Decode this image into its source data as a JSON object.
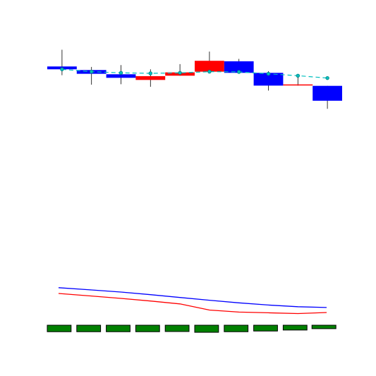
{
  "chart_data": [
    {
      "type": "candlestick",
      "grid": false,
      "ylim": [
        0,
        100
      ],
      "colors": {
        "up": "#ff0000",
        "down": "#0000ff",
        "wick": "#000000",
        "ma_line": "#00bfbf",
        "ma_marker": "#008080"
      },
      "candles": [
        {
          "open": 86.5,
          "close": 85.3,
          "high": 93.6,
          "low": 82.8
        },
        {
          "open": 85.0,
          "close": 83.4,
          "high": 86.3,
          "low": 78.8
        },
        {
          "open": 83.2,
          "close": 81.7,
          "high": 87.1,
          "low": 79.0
        },
        {
          "open": 80.8,
          "close": 82.4,
          "high": 85.3,
          "low": 77.9
        },
        {
          "open": 82.6,
          "close": 84.0,
          "high": 87.5,
          "low": 82.6
        },
        {
          "open": 84.3,
          "close": 88.9,
          "high": 92.8,
          "low": 84.3
        },
        {
          "open": 88.7,
          "close": 83.8,
          "high": 89.7,
          "low": 83.5
        },
        {
          "open": 83.8,
          "close": 78.4,
          "high": 84.5,
          "low": 76.3
        },
        {
          "open": 78.6,
          "close": 78.9,
          "high": 83.0,
          "low": 78.4
        },
        {
          "open": 78.3,
          "close": 72.0,
          "high": 78.3,
          "low": 68.6
        }
      ],
      "moving_average": [
        85.3,
        84.3,
        83.8,
        83.6,
        83.8,
        84.3,
        84.2,
        83.4,
        82.6,
        81.6
      ]
    },
    {
      "type": "line",
      "grid": false,
      "ylim": [
        0,
        100
      ],
      "series": [
        {
          "color": "#0000ff",
          "values": [
            70.2,
            67.0,
            64.0,
            60.3,
            56.3,
            52.4,
            48.7,
            45.6,
            43.2,
            42.1
          ]
        },
        {
          "color": "#ff0000",
          "values": [
            62.0,
            58.4,
            55.0,
            51.3,
            47.2,
            38.5,
            35.6,
            34.6,
            33.5,
            35.0
          ]
        }
      ]
    },
    {
      "type": "bar",
      "grid": false,
      "ylim": [
        0,
        100
      ],
      "bar_color": "#008000",
      "values": [
        66,
        66,
        66,
        66,
        64,
        72,
        66,
        59,
        49,
        35
      ]
    }
  ]
}
